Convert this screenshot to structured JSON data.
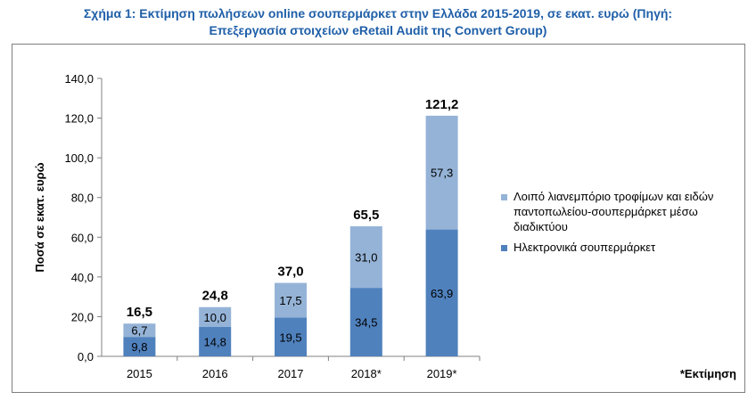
{
  "header": {
    "title_line1": "Σχήμα 1: Εκτίμηση πωλήσεων online σουπερμάρκετ στην Ελλάδα 2015-2019, σε εκατ. ευρώ (Πηγή:",
    "title_line2": "Επεξεργασία στοιχείων eRetail Audit της Convert Group)"
  },
  "footnote": "*Εκτίμηση",
  "colors": {
    "series_bottom": "#4f81bd",
    "series_top": "#95b3d7"
  },
  "chart_data": {
    "type": "bar",
    "stacked": true,
    "ylabel": "Ποσά σε εκατ. ευρώ",
    "ylim": [
      0,
      140
    ],
    "yticks": [
      "0,0",
      "20,0",
      "40,0",
      "60,0",
      "80,0",
      "100,0",
      "120,0",
      "140,0"
    ],
    "categories": [
      "2015",
      "2016",
      "2017",
      "2018*",
      "2019*"
    ],
    "series": [
      {
        "name": "Ηλεκτρονικά σουπερμάρκετ",
        "values": [
          9.8,
          14.8,
          19.5,
          34.5,
          63.9
        ],
        "labels": [
          "9,8",
          "14,8",
          "19,5",
          "34,5",
          "63,9"
        ]
      },
      {
        "name": "Λοιπό λιανεμπόριο τροφίμων και ειδών παντοπωλείου-σουπερμάρκετ μέσω διαδικτύου",
        "values": [
          6.7,
          10.0,
          17.5,
          31.0,
          57.3
        ],
        "labels": [
          "6,7",
          "10,0",
          "17,5",
          "31,0",
          "57,3"
        ]
      }
    ],
    "totals": [
      16.5,
      24.8,
      37.0,
      65.5,
      121.2
    ],
    "total_labels": [
      "16,5",
      "24,8",
      "37,0",
      "65,5",
      "121,2"
    ],
    "legend_position": "right",
    "grid": false
  }
}
